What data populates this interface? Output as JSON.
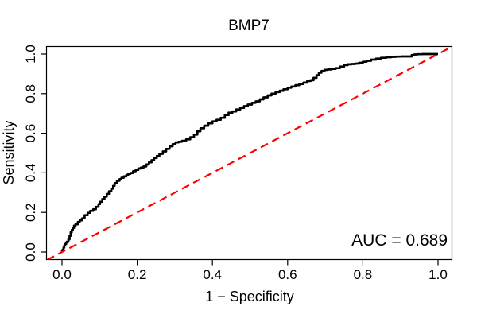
{
  "figure": {
    "title": "BMP7",
    "x_axis": {
      "label": "1 − Specificity",
      "ticks": [
        "0.0",
        "0.2",
        "0.4",
        "0.6",
        "0.8",
        "1.0"
      ]
    },
    "y_axis": {
      "label": "Sensitivity",
      "ticks": [
        "0.0",
        "0.2",
        "0.4",
        "0.6",
        "0.8",
        "1.0"
      ]
    },
    "annotation": {
      "text": "AUC = 0.689"
    },
    "colors": {
      "roc_curve": "#000000",
      "reference_line": "#FF0000",
      "frame": "#000000",
      "background": "#FFFFFF",
      "text": "#000000"
    }
  },
  "chart_data": {
    "type": "line",
    "title": "BMP7",
    "xlabel": "1 − Specificity",
    "ylabel": "Sensitivity",
    "xlim": [
      0,
      1
    ],
    "ylim": [
      0,
      1
    ],
    "x_ticks": [
      0.0,
      0.2,
      0.4,
      0.6,
      0.8,
      1.0
    ],
    "y_ticks": [
      0.0,
      0.2,
      0.4,
      0.6,
      0.8,
      1.0
    ],
    "grid": false,
    "legend": "none",
    "auc": 0.689,
    "annotations": [
      {
        "text": "AUC = 0.689",
        "position": "bottom-right"
      }
    ],
    "series": [
      {
        "name": "ROC curve",
        "render": "step",
        "color": "#000000",
        "dash": "solid",
        "width": 2.7,
        "points": [
          [
            0,
            0
          ],
          [
            0.002,
            0.004
          ],
          [
            0.004,
            0.012
          ],
          [
            0.006,
            0.022
          ],
          [
            0.008,
            0.032
          ],
          [
            0.011,
            0.04
          ],
          [
            0.013,
            0.048
          ],
          [
            0.017,
            0.052
          ],
          [
            0.02,
            0.064
          ],
          [
            0.023,
            0.082
          ],
          [
            0.026,
            0.1
          ],
          [
            0.029,
            0.112
          ],
          [
            0.032,
            0.122
          ],
          [
            0.036,
            0.133
          ],
          [
            0.042,
            0.14
          ],
          [
            0.047,
            0.152
          ],
          [
            0.053,
            0.16
          ],
          [
            0.06,
            0.17
          ],
          [
            0.068,
            0.186
          ],
          [
            0.075,
            0.198
          ],
          [
            0.083,
            0.208
          ],
          [
            0.09,
            0.216
          ],
          [
            0.097,
            0.228
          ],
          [
            0.101,
            0.242
          ],
          [
            0.107,
            0.254
          ],
          [
            0.113,
            0.267
          ],
          [
            0.119,
            0.28
          ],
          [
            0.125,
            0.294
          ],
          [
            0.131,
            0.307
          ],
          [
            0.136,
            0.32
          ],
          [
            0.14,
            0.334
          ],
          [
            0.146,
            0.348
          ],
          [
            0.153,
            0.36
          ],
          [
            0.158,
            0.368
          ],
          [
            0.164,
            0.375
          ],
          [
            0.171,
            0.382
          ],
          [
            0.176,
            0.389
          ],
          [
            0.182,
            0.395
          ],
          [
            0.189,
            0.399
          ],
          [
            0.196,
            0.408
          ],
          [
            0.203,
            0.415
          ],
          [
            0.21,
            0.422
          ],
          [
            0.217,
            0.427
          ],
          [
            0.224,
            0.432
          ],
          [
            0.231,
            0.442
          ],
          [
            0.238,
            0.453
          ],
          [
            0.245,
            0.464
          ],
          [
            0.252,
            0.475
          ],
          [
            0.259,
            0.485
          ],
          [
            0.268,
            0.496
          ],
          [
            0.277,
            0.508
          ],
          [
            0.286,
            0.521
          ],
          [
            0.294,
            0.534
          ],
          [
            0.302,
            0.545
          ],
          [
            0.31,
            0.554
          ],
          [
            0.319,
            0.557
          ],
          [
            0.33,
            0.562
          ],
          [
            0.341,
            0.569
          ],
          [
            0.351,
            0.58
          ],
          [
            0.36,
            0.593
          ],
          [
            0.368,
            0.61
          ],
          [
            0.378,
            0.625
          ],
          [
            0.389,
            0.638
          ],
          [
            0.4,
            0.65
          ],
          [
            0.411,
            0.66
          ],
          [
            0.422,
            0.668
          ],
          [
            0.433,
            0.678
          ],
          [
            0.443,
            0.692
          ],
          [
            0.453,
            0.704
          ],
          [
            0.463,
            0.71
          ],
          [
            0.474,
            0.72
          ],
          [
            0.484,
            0.728
          ],
          [
            0.494,
            0.737
          ],
          [
            0.505,
            0.745
          ],
          [
            0.515,
            0.754
          ],
          [
            0.526,
            0.761
          ],
          [
            0.536,
            0.771
          ],
          [
            0.547,
            0.781
          ],
          [
            0.557,
            0.791
          ],
          [
            0.568,
            0.8
          ],
          [
            0.579,
            0.808
          ],
          [
            0.589,
            0.815
          ],
          [
            0.6,
            0.822
          ],
          [
            0.61,
            0.83
          ],
          [
            0.621,
            0.836
          ],
          [
            0.631,
            0.843
          ],
          [
            0.642,
            0.849
          ],
          [
            0.652,
            0.856
          ],
          [
            0.661,
            0.864
          ],
          [
            0.669,
            0.868
          ],
          [
            0.677,
            0.88
          ],
          [
            0.683,
            0.893
          ],
          [
            0.69,
            0.906
          ],
          [
            0.698,
            0.915
          ],
          [
            0.707,
            0.92
          ],
          [
            0.717,
            0.922
          ],
          [
            0.728,
            0.925
          ],
          [
            0.739,
            0.929
          ],
          [
            0.75,
            0.937
          ],
          [
            0.76,
            0.944
          ],
          [
            0.77,
            0.948
          ],
          [
            0.78,
            0.95
          ],
          [
            0.79,
            0.952
          ],
          [
            0.8,
            0.956
          ],
          [
            0.81,
            0.961
          ],
          [
            0.822,
            0.966
          ],
          [
            0.835,
            0.972
          ],
          [
            0.848,
            0.977
          ],
          [
            0.862,
            0.981
          ],
          [
            0.875,
            0.984
          ],
          [
            0.888,
            0.986
          ],
          [
            0.902,
            0.987
          ],
          [
            0.916,
            0.988
          ],
          [
            0.93,
            0.988
          ],
          [
            0.937,
            0.995
          ],
          [
            0.945,
            0.998
          ],
          [
            0.958,
            0.999
          ],
          [
            0.972,
            1
          ],
          [
            1,
            1
          ]
        ]
      },
      {
        "name": "Chance line",
        "render": "line",
        "color": "#FF0000",
        "dash": "dashed",
        "width": 2.2,
        "points": [
          [
            -0.04,
            -0.04
          ],
          [
            1.04,
            1.04
          ]
        ]
      }
    ]
  }
}
